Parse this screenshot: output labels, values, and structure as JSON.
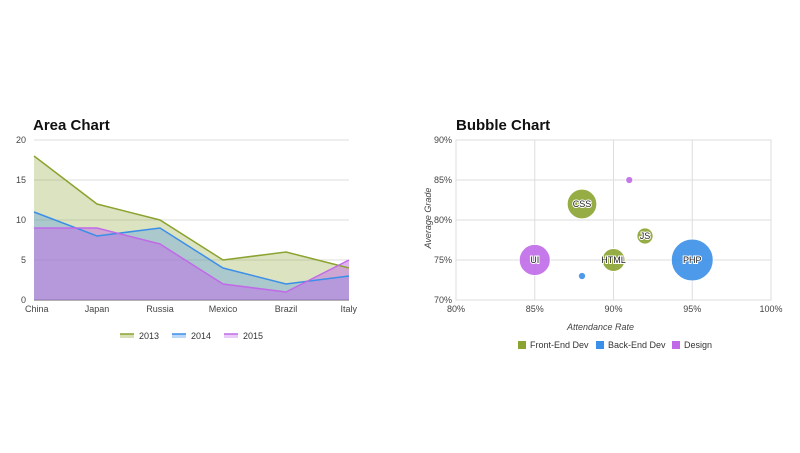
{
  "chart_data": [
    {
      "type": "area",
      "title": "Area Chart",
      "categories": [
        "China",
        "Japan",
        "Russia",
        "Mexico",
        "Brazil",
        "Italy"
      ],
      "series": [
        {
          "name": "2013",
          "values": [
            18,
            12,
            10,
            5,
            6,
            4
          ],
          "color": "#8ba330"
        },
        {
          "name": "2014",
          "values": [
            11,
            8,
            9,
            4,
            2,
            3
          ],
          "color": "#3b8fe8"
        },
        {
          "name": "2015",
          "values": [
            9,
            9,
            7,
            2,
            1,
            5
          ],
          "color": "#c06ae8"
        }
      ],
      "ylim": [
        0,
        20
      ],
      "yticks": [
        "0",
        "5",
        "10",
        "15",
        "20"
      ],
      "grid": true,
      "legend": "bottom"
    },
    {
      "type": "bubble",
      "title": "Bubble Chart",
      "xlabel": "Attendance Rate",
      "ylabel": "Average Grade",
      "xlim": [
        80,
        100
      ],
      "ylim": [
        70,
        90
      ],
      "xticks": [
        "80%",
        "85%",
        "90%",
        "95%",
        "100%"
      ],
      "yticks": [
        "70%",
        "75%",
        "80%",
        "85%",
        "90%"
      ],
      "grid": true,
      "legend": "bottom",
      "groups": [
        {
          "name": "Front-End Dev",
          "color": "#8ba330"
        },
        {
          "name": "Back-End Dev",
          "color": "#3b8fe8"
        },
        {
          "name": "Design",
          "color": "#c06ae8"
        }
      ],
      "points": [
        {
          "label": "CSS",
          "x": 88,
          "y": 82,
          "size": 5,
          "group": 0
        },
        {
          "label": "HTML",
          "x": 90,
          "y": 75,
          "size": 3,
          "group": 0
        },
        {
          "label": "JS",
          "x": 92,
          "y": 78,
          "size": 1.5,
          "group": 0
        },
        {
          "label": "PHP",
          "x": 95,
          "y": 75,
          "size": 10,
          "group": 1
        },
        {
          "label": "",
          "x": 88,
          "y": 73,
          "size": 0.3,
          "group": 1
        },
        {
          "label": "UI",
          "x": 85,
          "y": 75,
          "size": 5.5,
          "group": 2
        },
        {
          "label": "",
          "x": 91,
          "y": 85,
          "size": 0.3,
          "group": 2
        }
      ]
    }
  ]
}
